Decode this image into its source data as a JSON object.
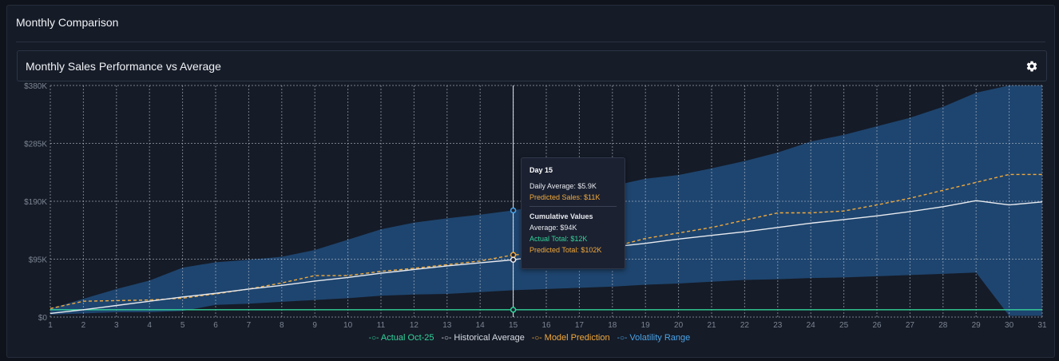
{
  "panel": {
    "title": "Monthly Comparison"
  },
  "card": {
    "title": "Monthly Sales Performance vs Average",
    "settings_icon": "gear-icon"
  },
  "tooltip": {
    "day": "Day 15",
    "daily_average": "Daily Average: $5.9K",
    "predicted_sales": "Predicted Sales: $11K",
    "section_title": "Cumulative Values",
    "average": "Average: $94K",
    "actual_total": "Actual Total: $12K",
    "predicted_total": "Predicted Total: $102K"
  },
  "legend": [
    {
      "name": "Actual Oct-25",
      "color": "#34d399"
    },
    {
      "name": "Historical Average",
      "color": "#d7dbe3"
    },
    {
      "name": "Model Prediction",
      "color": "#f2a93b"
    },
    {
      "name": "Volatility Range",
      "color": "#4aa3e8"
    }
  ],
  "colors": {
    "band": "#1f4a78",
    "grid": "#c9ced8",
    "axis_text": "#7d8593",
    "crosshair": "#dfe4ec"
  },
  "chart_data": {
    "type": "line",
    "x": [
      1,
      2,
      3,
      4,
      5,
      6,
      7,
      8,
      9,
      10,
      11,
      12,
      13,
      14,
      15,
      16,
      17,
      18,
      19,
      20,
      21,
      22,
      23,
      24,
      25,
      26,
      27,
      28,
      29,
      30,
      31
    ],
    "xlim": [
      1,
      31
    ],
    "ylim": [
      0,
      380000
    ],
    "y_ticks": [
      0,
      95000,
      190000,
      285000,
      380000
    ],
    "y_tick_labels": [
      "$0",
      "$95K",
      "$190K",
      "$285K",
      "$380K"
    ],
    "x_tick_labels": [
      "1",
      "2",
      "3",
      "4",
      "5",
      "6",
      "7",
      "8",
      "9",
      "10",
      "11",
      "12",
      "13",
      "14",
      "15",
      "16",
      "17",
      "18",
      "19",
      "20",
      "21",
      "22",
      "23",
      "24",
      "25",
      "26",
      "27",
      "28",
      "29",
      "30",
      "31"
    ],
    "grid": true,
    "hover_x": 15,
    "series": [
      {
        "name": "Actual Oct-25",
        "values": [
          12000,
          12000,
          12000,
          12000,
          12000,
          12000,
          12000,
          12000,
          12000,
          12000,
          12000,
          12000,
          12000,
          12000,
          12000,
          12000,
          12000,
          12000,
          12000,
          12000,
          12000,
          12000,
          12000,
          12000,
          12000,
          12000,
          12000,
          12000,
          12000,
          12000,
          12000
        ]
      },
      {
        "name": "Historical Average",
        "values": [
          6000,
          12000,
          19000,
          26000,
          33000,
          39000,
          46000,
          52000,
          59000,
          65000,
          72000,
          78000,
          84000,
          89000,
          94000,
          102000,
          109000,
          115000,
          121000,
          128000,
          134000,
          140000,
          147000,
          154000,
          160000,
          166000,
          173000,
          181000,
          191000,
          184000,
          189000
        ]
      },
      {
        "name": "Model Prediction",
        "values": [
          14000,
          26000,
          27000,
          28000,
          31000,
          38000,
          46000,
          56000,
          68000,
          68000,
          75000,
          80000,
          86000,
          92000,
          102000,
          105000,
          107000,
          115000,
          129000,
          138000,
          147000,
          159000,
          171000,
          171000,
          174000,
          184000,
          195000,
          208000,
          221000,
          234000,
          234000
        ]
      },
      {
        "name": "Volatility Range",
        "upper": [
          14000,
          30000,
          46000,
          60000,
          81000,
          90000,
          94000,
          99000,
          110000,
          127000,
          144000,
          155000,
          162000,
          168000,
          175000,
          185000,
          205000,
          215000,
          227000,
          233000,
          244000,
          256000,
          270000,
          288000,
          299000,
          313000,
          327000,
          345000,
          368000,
          380000,
          380000
        ],
        "lower": [
          4000,
          6000,
          8000,
          8000,
          10000,
          20000,
          22000,
          25000,
          28000,
          31000,
          35000,
          37000,
          38000,
          41000,
          44000,
          46000,
          48000,
          50000,
          53000,
          55000,
          58000,
          61000,
          62000,
          64000,
          65000,
          67000,
          69000,
          71000,
          73000,
          2000,
          2000
        ]
      }
    ]
  }
}
